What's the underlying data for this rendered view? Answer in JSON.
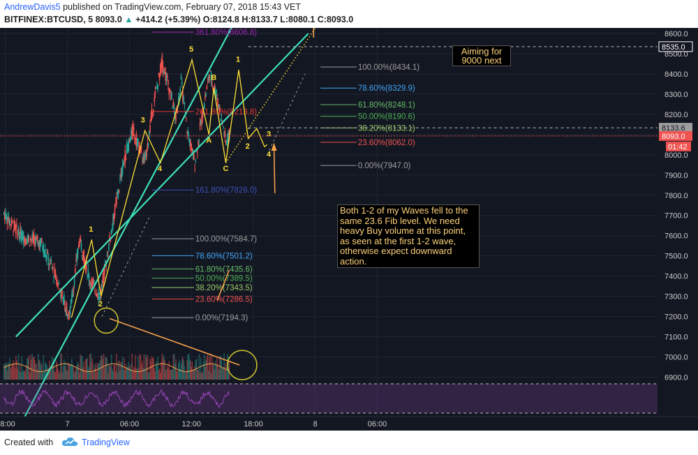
{
  "header": {
    "author": "AndrewDavis5",
    "published": "published on TradingView.com, February 07, 2018 15:43 VET",
    "symbol": "BITFINEX:BTCUSD, 5",
    "last": "8093.0",
    "arrow": "▲",
    "change": "+414.2 (+5.39%)",
    "ohlc": "O:8124.8 H:8133.7 L:8080.1 C:8093.0"
  },
  "footer": {
    "created_with": "Created with",
    "brand": "TradingView"
  },
  "colors": {
    "background": "#131722",
    "up": "#26a69a",
    "down": "#ef5350",
    "channel": "#3fe0b8",
    "wave": "#ffe135",
    "annotation_arrow": "#f5a04a",
    "rsi": "#8e44ad"
  },
  "notes": {
    "waves_note": "Both 1-2 of my Waves fell to the same 23.6 Fib level. We need heavy Buy volume at this point, as seen at the first 1-2 wave, otherwise expect downward action.",
    "target_note": "Aiming for 9000 next"
  },
  "chart_data": {
    "type": "candlestick",
    "symbol": "BITFINEX:BTCUSD",
    "interval": "5",
    "ylim": [
      6860,
      8640
    ],
    "y_ticks": [
      "6900.0",
      "7000.0",
      "7100.0",
      "7200.0",
      "7300.0",
      "7400.0",
      "7500.0",
      "7600.0",
      "7700.0",
      "7800.0",
      "7900.0",
      "8000.0",
      "8100.0",
      "8200.0",
      "8300.0",
      "8400.0",
      "8500.0",
      "8600.0"
    ],
    "x_tick_labels": [
      "18:00",
      "7",
      "06:00",
      "12:00",
      "18:00",
      "8",
      "06:00"
    ],
    "price_labels": {
      "high_line": "8133.6",
      "target": "8535.0",
      "current": "8093.0",
      "countdown": "01:42"
    },
    "rsi_tick": "40.0000",
    "price_path": [
      {
        "t": "Feb 6 17:50",
        "p": 7710
      },
      {
        "t": "Feb 6 19:30",
        "p": 7600
      },
      {
        "t": "Feb 6 21:30",
        "p": 7560
      },
      {
        "t": "Feb 6 23:00",
        "p": 7380
      },
      {
        "t": "Feb 7 00:10",
        "p": 7195
      },
      {
        "t": "Feb 7 01:10",
        "p": 7580
      },
      {
        "t": "Feb 7 02:10",
        "p": 7380
      },
      {
        "t": "Feb 7 03:10",
        "p": 7300
      },
      {
        "t": "Feb 7 04:30",
        "p": 7700
      },
      {
        "t": "Feb 7 05:30",
        "p": 7980
      },
      {
        "t": "Feb 7 06:20",
        "p": 8120
      },
      {
        "t": "Feb 7 07:30",
        "p": 7960
      },
      {
        "t": "Feb 7 08:20",
        "p": 8250
      },
      {
        "t": "Feb 7 09:10",
        "p": 8460
      },
      {
        "t": "Feb 7 09:50",
        "p": 8330
      },
      {
        "t": "Feb 7 10:30",
        "p": 8180
      },
      {
        "t": "Feb 7 11:00",
        "p": 8360
      },
      {
        "t": "Feb 7 11:40",
        "p": 8100
      },
      {
        "t": "Feb 7 12:20",
        "p": 7960
      },
      {
        "t": "Feb 7 13:10",
        "p": 8230
      },
      {
        "t": "Feb 7 13:45",
        "p": 8400
      },
      {
        "t": "Feb 7 14:20",
        "p": 8320
      },
      {
        "t": "Feb 7 15:00",
        "p": 8160
      },
      {
        "t": "Feb 7 15:20",
        "p": 8060
      },
      {
        "t": "Feb 7 15:40",
        "p": 8093
      }
    ],
    "fib_left": [
      {
        "label": "361.80%(8606.8)",
        "price": 8606.8,
        "color": "#9c27b0"
      },
      {
        "label": "261.80%(8213.8)",
        "price": 8213.8,
        "color": "#e53935"
      },
      {
        "label": "161.80%(7826.0)",
        "price": 7826.0,
        "color": "#3f51b5"
      },
      {
        "label": "100.00%(7584.7)",
        "price": 7584.7,
        "color": "#9e9e9e"
      },
      {
        "label": "78.60%(7501.2)",
        "price": 7501.2,
        "color": "#42a5f5"
      },
      {
        "label": "61.80%(7435.6)",
        "price": 7435.6,
        "color": "#66bb6a"
      },
      {
        "label": "50.00%(7389.5)",
        "price": 7389.5,
        "color": "#4caf50"
      },
      {
        "label": "38.20%(7343.5)",
        "price": 7343.5,
        "color": "#9ccc65"
      },
      {
        "label": "23.60%(7286.5)",
        "price": 7286.5,
        "color": "#ef5350"
      },
      {
        "label": "0.00%(7194.3)",
        "price": 7194.3,
        "color": "#9e9e9e"
      }
    ],
    "fib_right": [
      {
        "label": "100.00%(8434.1)",
        "price": 8434.1,
        "color": "#9e9e9e"
      },
      {
        "label": "78.60%(8329.9)",
        "price": 8329.9,
        "color": "#42a5f5"
      },
      {
        "label": "61.80%(8248.1)",
        "price": 8248.1,
        "color": "#66bb6a"
      },
      {
        "label": "50.00%(8190.6)",
        "price": 8190.6,
        "color": "#4caf50"
      },
      {
        "label": "38.20%(8133.1)",
        "price": 8133.1,
        "color": "#9ccc65"
      },
      {
        "label": "23.60%(8062.0)",
        "price": 8062.0,
        "color": "#ef5350"
      },
      {
        "label": "0.00%(7947.0)",
        "price": 7947.0,
        "color": "#9e9e9e"
      }
    ],
    "wave_labels": [
      "1",
      "2",
      "3",
      "4",
      "5",
      "A",
      "B",
      "C",
      "1",
      "2",
      "3",
      "4"
    ]
  }
}
